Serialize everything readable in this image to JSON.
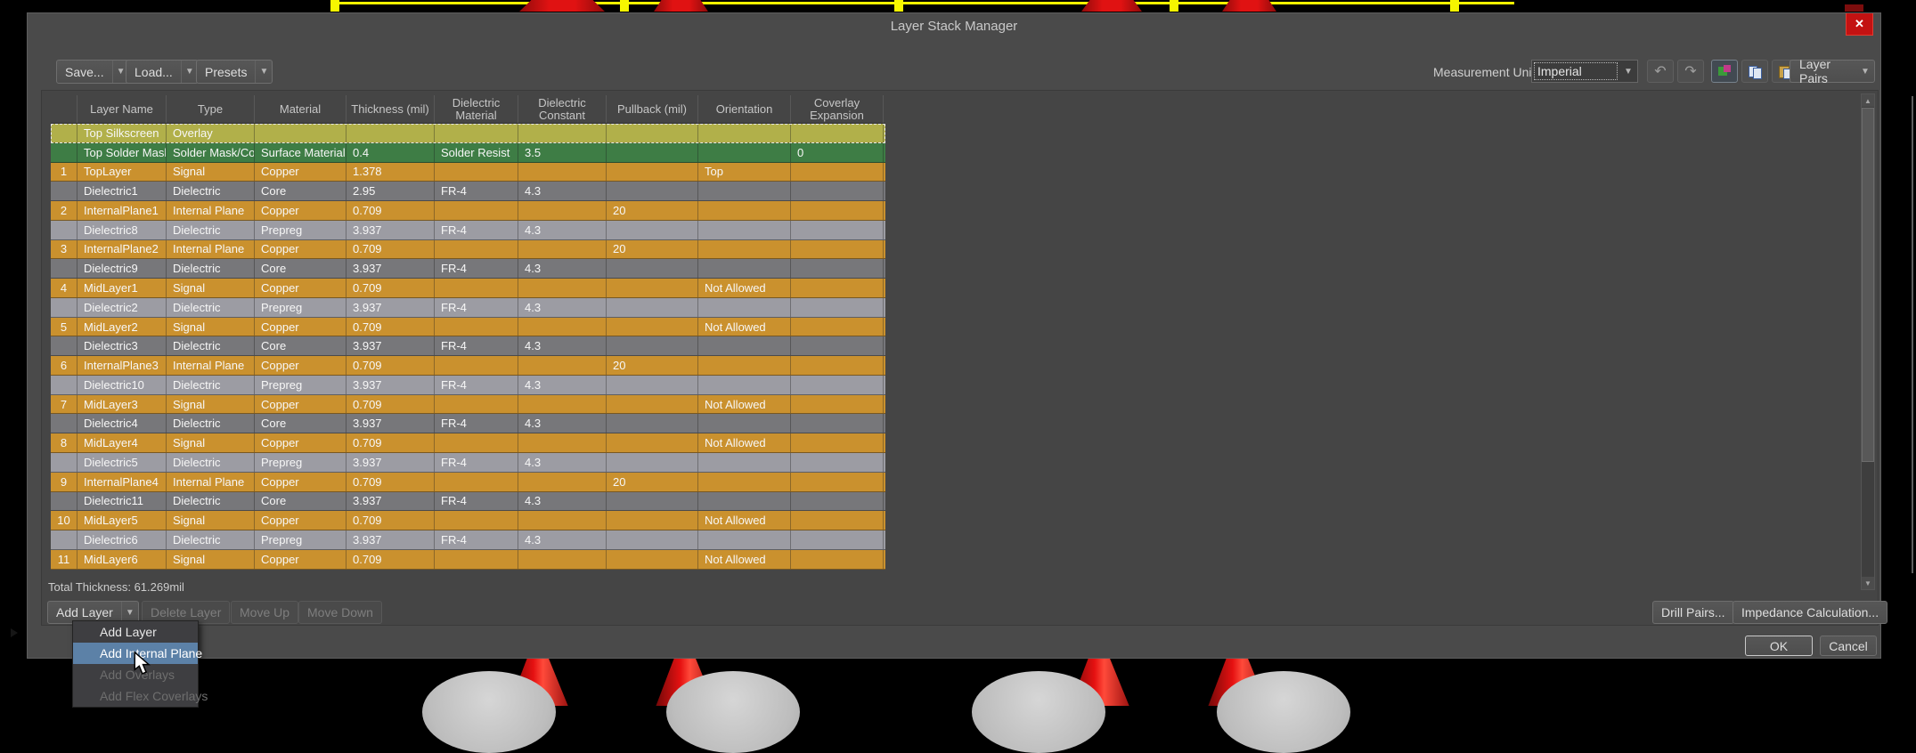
{
  "window": {
    "title": "Layer Stack Manager",
    "close_glyph": "✕"
  },
  "toolbar": {
    "save_label": "Save...",
    "load_label": "Load...",
    "presets_label": "Presets",
    "measurement_unit_label": "Measurement Unit",
    "measurement_unit_value": "Imperial",
    "layer_pairs_label": "Layer Pairs",
    "undo_glyph": "↶",
    "redo_glyph": "↷"
  },
  "table": {
    "columns": [
      "",
      "Layer Name",
      "Type",
      "Material",
      "Thickness (mil)",
      "Dielectric\nMaterial",
      "Dielectric\nConstant",
      "Pullback (mil)",
      "Orientation",
      "Coverlay\nExpansion"
    ],
    "rows": [
      {
        "num": "",
        "name": "Top Silkscreen",
        "type": "Overlay",
        "material": "",
        "thickness": "",
        "dielectric_material": "",
        "dielectric_constant": "",
        "pullback": "",
        "orientation": "",
        "coverlay_expansion": "",
        "kind": "overlay"
      },
      {
        "num": "",
        "name": "Top Solder Mask",
        "type": "Solder Mask/Co...",
        "material": "Surface Material",
        "thickness": "0.4",
        "dielectric_material": "Solder Resist",
        "dielectric_constant": "3.5",
        "pullback": "",
        "orientation": "",
        "coverlay_expansion": "0",
        "kind": "mask"
      },
      {
        "num": "1",
        "name": "TopLayer",
        "type": "Signal",
        "material": "Copper",
        "thickness": "1.378",
        "dielectric_material": "",
        "dielectric_constant": "",
        "pullback": "",
        "orientation": "Top",
        "coverlay_expansion": "",
        "kind": "signal"
      },
      {
        "num": "",
        "name": "Dielectric1",
        "type": "Dielectric",
        "material": "Core",
        "thickness": "2.95",
        "dielectric_material": "FR-4",
        "dielectric_constant": "4.3",
        "pullback": "",
        "orientation": "",
        "coverlay_expansion": "",
        "kind": "core"
      },
      {
        "num": "2",
        "name": "InternalPlane1",
        "type": "Internal Plane",
        "material": "Copper",
        "thickness": "0.709",
        "dielectric_material": "",
        "dielectric_constant": "",
        "pullback": "20",
        "orientation": "",
        "coverlay_expansion": "",
        "kind": "plane"
      },
      {
        "num": "",
        "name": "Dielectric8",
        "type": "Dielectric",
        "material": "Prepreg",
        "thickness": "3.937",
        "dielectric_material": "FR-4",
        "dielectric_constant": "4.3",
        "pullback": "",
        "orientation": "",
        "coverlay_expansion": "",
        "kind": "prepreg"
      },
      {
        "num": "3",
        "name": "InternalPlane2",
        "type": "Internal Plane",
        "material": "Copper",
        "thickness": "0.709",
        "dielectric_material": "",
        "dielectric_constant": "",
        "pullback": "20",
        "orientation": "",
        "coverlay_expansion": "",
        "kind": "plane"
      },
      {
        "num": "",
        "name": "Dielectric9",
        "type": "Dielectric",
        "material": "Core",
        "thickness": "3.937",
        "dielectric_material": "FR-4",
        "dielectric_constant": "4.3",
        "pullback": "",
        "orientation": "",
        "coverlay_expansion": "",
        "kind": "core"
      },
      {
        "num": "4",
        "name": "MidLayer1",
        "type": "Signal",
        "material": "Copper",
        "thickness": "0.709",
        "dielectric_material": "",
        "dielectric_constant": "",
        "pullback": "",
        "orientation": "Not Allowed",
        "coverlay_expansion": "",
        "kind": "signal"
      },
      {
        "num": "",
        "name": "Dielectric2",
        "type": "Dielectric",
        "material": "Prepreg",
        "thickness": "3.937",
        "dielectric_material": "FR-4",
        "dielectric_constant": "4.3",
        "pullback": "",
        "orientation": "",
        "coverlay_expansion": "",
        "kind": "prepreg"
      },
      {
        "num": "5",
        "name": "MidLayer2",
        "type": "Signal",
        "material": "Copper",
        "thickness": "0.709",
        "dielectric_material": "",
        "dielectric_constant": "",
        "pullback": "",
        "orientation": "Not Allowed",
        "coverlay_expansion": "",
        "kind": "signal"
      },
      {
        "num": "",
        "name": "Dielectric3",
        "type": "Dielectric",
        "material": "Core",
        "thickness": "3.937",
        "dielectric_material": "FR-4",
        "dielectric_constant": "4.3",
        "pullback": "",
        "orientation": "",
        "coverlay_expansion": "",
        "kind": "core"
      },
      {
        "num": "6",
        "name": "InternalPlane3",
        "type": "Internal Plane",
        "material": "Copper",
        "thickness": "0.709",
        "dielectric_material": "",
        "dielectric_constant": "",
        "pullback": "20",
        "orientation": "",
        "coverlay_expansion": "",
        "kind": "plane"
      },
      {
        "num": "",
        "name": "Dielectric10",
        "type": "Dielectric",
        "material": "Prepreg",
        "thickness": "3.937",
        "dielectric_material": "FR-4",
        "dielectric_constant": "4.3",
        "pullback": "",
        "orientation": "",
        "coverlay_expansion": "",
        "kind": "prepreg"
      },
      {
        "num": "7",
        "name": "MidLayer3",
        "type": "Signal",
        "material": "Copper",
        "thickness": "0.709",
        "dielectric_material": "",
        "dielectric_constant": "",
        "pullback": "",
        "orientation": "Not Allowed",
        "coverlay_expansion": "",
        "kind": "signal"
      },
      {
        "num": "",
        "name": "Dielectric4",
        "type": "Dielectric",
        "material": "Core",
        "thickness": "3.937",
        "dielectric_material": "FR-4",
        "dielectric_constant": "4.3",
        "pullback": "",
        "orientation": "",
        "coverlay_expansion": "",
        "kind": "core"
      },
      {
        "num": "8",
        "name": "MidLayer4",
        "type": "Signal",
        "material": "Copper",
        "thickness": "0.709",
        "dielectric_material": "",
        "dielectric_constant": "",
        "pullback": "",
        "orientation": "Not Allowed",
        "coverlay_expansion": "",
        "kind": "signal"
      },
      {
        "num": "",
        "name": "Dielectric5",
        "type": "Dielectric",
        "material": "Prepreg",
        "thickness": "3.937",
        "dielectric_material": "FR-4",
        "dielectric_constant": "4.3",
        "pullback": "",
        "orientation": "",
        "coverlay_expansion": "",
        "kind": "prepreg"
      },
      {
        "num": "9",
        "name": "InternalPlane4",
        "type": "Internal Plane",
        "material": "Copper",
        "thickness": "0.709",
        "dielectric_material": "",
        "dielectric_constant": "",
        "pullback": "20",
        "orientation": "",
        "coverlay_expansion": "",
        "kind": "plane"
      },
      {
        "num": "",
        "name": "Dielectric11",
        "type": "Dielectric",
        "material": "Core",
        "thickness": "3.937",
        "dielectric_material": "FR-4",
        "dielectric_constant": "4.3",
        "pullback": "",
        "orientation": "",
        "coverlay_expansion": "",
        "kind": "core"
      },
      {
        "num": "10",
        "name": "MidLayer5",
        "type": "Signal",
        "material": "Copper",
        "thickness": "0.709",
        "dielectric_material": "",
        "dielectric_constant": "",
        "pullback": "",
        "orientation": "Not Allowed",
        "coverlay_expansion": "",
        "kind": "signal"
      },
      {
        "num": "",
        "name": "Dielectric6",
        "type": "Dielectric",
        "material": "Prepreg",
        "thickness": "3.937",
        "dielectric_material": "FR-4",
        "dielectric_constant": "4.3",
        "pullback": "",
        "orientation": "",
        "coverlay_expansion": "",
        "kind": "prepreg"
      },
      {
        "num": "11",
        "name": "MidLayer6",
        "type": "Signal",
        "material": "Copper",
        "thickness": "0.709",
        "dielectric_material": "",
        "dielectric_constant": "",
        "pullback": "",
        "orientation": "Not Allowed",
        "coverlay_expansion": "",
        "kind": "signal"
      }
    ]
  },
  "footer": {
    "total_thickness": "Total Thickness: 61.269mil",
    "add_layer_label": "Add Layer",
    "delete_layer_label": "Delete Layer",
    "move_up_label": "Move Up",
    "move_down_label": "Move Down",
    "drill_pairs_label": "Drill Pairs...",
    "impedance_label": "Impedance Calculation...",
    "ok_label": "OK",
    "cancel_label": "Cancel"
  },
  "menu": {
    "items": [
      {
        "label": "Add Layer",
        "state": "enabled"
      },
      {
        "label": "Add Internal Plane",
        "state": "highlighted"
      },
      {
        "label": "Add Overlays",
        "state": "disabled"
      },
      {
        "label": "Add Flex Coverlays",
        "state": "disabled"
      }
    ]
  },
  "colors": {
    "close_button": "#c31212",
    "menu_highlight": "#5c81a7",
    "marker_yellow": "#f6f600",
    "component_red": "#d81111",
    "pad_gray": "#c6c6c6",
    "row_colors": {
      "overlay": "#b1b04a",
      "mask": "#3e7d45",
      "signal": "#ca912e",
      "plane": "#ca912e",
      "core": "#77777a",
      "prepreg": "#9c9ca3"
    }
  }
}
